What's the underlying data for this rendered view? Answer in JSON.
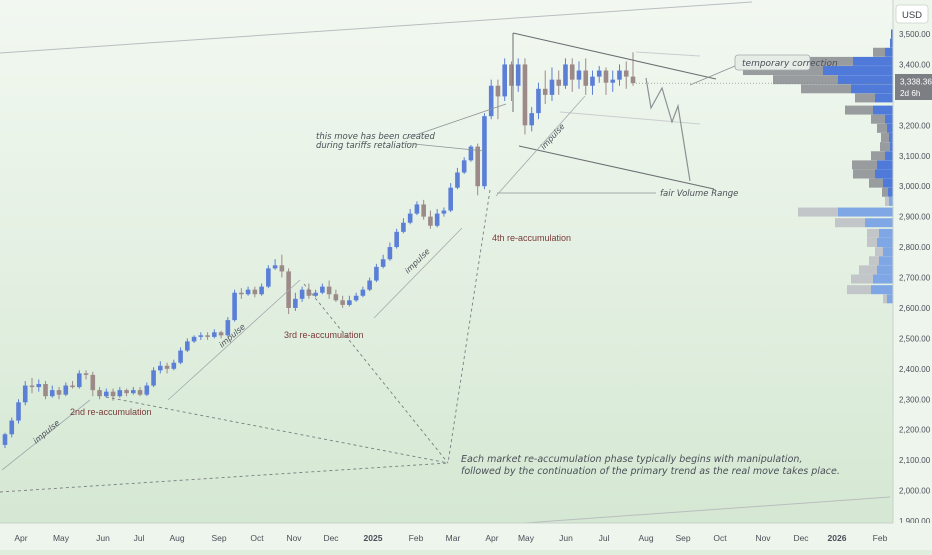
{
  "currency": "USD",
  "price_badge": {
    "price": "3,338.36",
    "countdown": "2d 6h"
  },
  "colors": {
    "background": "#dfeedd",
    "up": "#5b7fd6",
    "down": "#9c8a88",
    "badge": "#7b7f84",
    "vp_up": "#4f7ad9",
    "vp_down": "#999c9f",
    "vp_up_light": "#7fa7e6",
    "vp_down_light": "#c2c6c8",
    "annotation": "#4a4f58",
    "label": "#7a3a3a"
  },
  "annotations": {
    "tariffs": [
      "this move has been created",
      "during tariffs retaliation"
    ],
    "temporary_correction": "temporary correction",
    "fair_volume_range": "fair Volume Range",
    "impulse": "impulse",
    "reacc_2nd": "2nd re-accumulation",
    "reacc_3rd": "3rd re-accumulation",
    "reacc_4th": "4th re-accumulation",
    "note": [
      "Each market re-accumulation phase typically begins with manipulation,",
      "followed by the continuation of the primary trend as the real move takes place."
    ]
  },
  "chart_data": {
    "type": "candlestick",
    "ylim": [
      1900,
      3550
    ],
    "yticks": [
      1900,
      2000,
      2100,
      2200,
      2300,
      2400,
      2500,
      2600,
      2700,
      2800,
      2900,
      3000,
      3100,
      3200,
      3300,
      3400,
      3500
    ],
    "ytick_labels": [
      "1,900.00",
      "2,000.00",
      "2,100.00",
      "2,200.00",
      "2,300.00",
      "2,400.00",
      "2,500.00",
      "2,600.00",
      "2,700.00",
      "2,800.00",
      "2,900.00",
      "3,000.00",
      "3,100.00",
      "3,200.00",
      "3,300.00",
      "3,400.00",
      "3,500.00"
    ],
    "x_labels": [
      "Apr",
      "May",
      "Jun",
      "Jul",
      "Aug",
      "Sep",
      "Oct",
      "Nov",
      "Dec",
      "2025",
      "Feb",
      "Mar",
      "Apr",
      "May",
      "Jun",
      "Jul",
      "Aug",
      "Sep",
      "Oct",
      "Nov",
      "Dec",
      "2026",
      "Feb"
    ],
    "last_price": 3338.36,
    "candles": [
      [
        2150,
        2185,
        2140,
        2190
      ],
      [
        2185,
        2230,
        2175,
        2240
      ],
      [
        2230,
        2290,
        2220,
        2300
      ],
      [
        2290,
        2345,
        2280,
        2360
      ],
      [
        2345,
        2340,
        2320,
        2370
      ],
      [
        2340,
        2350,
        2325,
        2365
      ],
      [
        2350,
        2310,
        2300,
        2360
      ],
      [
        2310,
        2330,
        2305,
        2345
      ],
      [
        2330,
        2315,
        2300,
        2340
      ],
      [
        2315,
        2345,
        2310,
        2355
      ],
      [
        2345,
        2340,
        2335,
        2360
      ],
      [
        2340,
        2385,
        2335,
        2395
      ],
      [
        2385,
        2380,
        2365,
        2395
      ],
      [
        2380,
        2330,
        2310,
        2390
      ],
      [
        2330,
        2310,
        2300,
        2340
      ],
      [
        2310,
        2325,
        2305,
        2335
      ],
      [
        2325,
        2310,
        2295,
        2335
      ],
      [
        2310,
        2330,
        2305,
        2340
      ],
      [
        2330,
        2320,
        2310,
        2335
      ],
      [
        2320,
        2330,
        2315,
        2340
      ],
      [
        2330,
        2315,
        2310,
        2340
      ],
      [
        2315,
        2345,
        2310,
        2355
      ],
      [
        2345,
        2395,
        2340,
        2405
      ],
      [
        2395,
        2410,
        2385,
        2425
      ],
      [
        2410,
        2400,
        2385,
        2420
      ],
      [
        2400,
        2420,
        2395,
        2430
      ],
      [
        2420,
        2460,
        2415,
        2470
      ],
      [
        2460,
        2490,
        2455,
        2500
      ],
      [
        2490,
        2505,
        2485,
        2510
      ],
      [
        2505,
        2510,
        2495,
        2520
      ],
      [
        2510,
        2505,
        2495,
        2520
      ],
      [
        2505,
        2520,
        2500,
        2530
      ],
      [
        2520,
        2510,
        2500,
        2525
      ],
      [
        2510,
        2560,
        2505,
        2570
      ],
      [
        2560,
        2650,
        2555,
        2660
      ],
      [
        2650,
        2645,
        2630,
        2665
      ],
      [
        2645,
        2660,
        2640,
        2670
      ],
      [
        2660,
        2645,
        2635,
        2670
      ],
      [
        2645,
        2670,
        2640,
        2680
      ],
      [
        2670,
        2730,
        2665,
        2740
      ],
      [
        2730,
        2740,
        2725,
        2760
      ],
      [
        2740,
        2720,
        2700,
        2775
      ],
      [
        2720,
        2600,
        2580,
        2730
      ],
      [
        2600,
        2630,
        2590,
        2650
      ],
      [
        2630,
        2660,
        2620,
        2670
      ],
      [
        2660,
        2640,
        2630,
        2680
      ],
      [
        2640,
        2650,
        2635,
        2660
      ],
      [
        2650,
        2670,
        2645,
        2680
      ],
      [
        2670,
        2645,
        2630,
        2690
      ],
      [
        2645,
        2625,
        2620,
        2660
      ],
      [
        2625,
        2610,
        2600,
        2640
      ],
      [
        2610,
        2625,
        2605,
        2640
      ],
      [
        2625,
        2640,
        2620,
        2650
      ],
      [
        2640,
        2660,
        2635,
        2670
      ],
      [
        2660,
        2690,
        2655,
        2700
      ],
      [
        2690,
        2735,
        2685,
        2745
      ],
      [
        2735,
        2760,
        2730,
        2775
      ],
      [
        2760,
        2800,
        2755,
        2815
      ],
      [
        2800,
        2850,
        2795,
        2860
      ],
      [
        2850,
        2880,
        2845,
        2895
      ],
      [
        2880,
        2910,
        2875,
        2925
      ],
      [
        2910,
        2940,
        2905,
        2950
      ],
      [
        2940,
        2900,
        2890,
        2955
      ],
      [
        2900,
        2870,
        2860,
        2920
      ],
      [
        2870,
        2910,
        2865,
        2925
      ],
      [
        2910,
        2920,
        2900,
        2930
      ],
      [
        2920,
        2995,
        2915,
        3010
      ],
      [
        2995,
        3045,
        2990,
        3060
      ],
      [
        3045,
        3085,
        3040,
        3095
      ],
      [
        3085,
        3130,
        3080,
        3135
      ],
      [
        3130,
        3000,
        2970,
        3140
      ],
      [
        3000,
        3230,
        2990,
        3240
      ],
      [
        3230,
        3330,
        3220,
        3350
      ],
      [
        3330,
        3295,
        3220,
        3350
      ],
      [
        3295,
        3400,
        3280,
        3420
      ],
      [
        3400,
        3330,
        3280,
        3410
      ],
      [
        3330,
        3400,
        3310,
        3420
      ],
      [
        3400,
        3200,
        3170,
        3420
      ],
      [
        3200,
        3240,
        3180,
        3260
      ],
      [
        3240,
        3320,
        3220,
        3340
      ],
      [
        3320,
        3300,
        3270,
        3380
      ],
      [
        3300,
        3350,
        3280,
        3390
      ],
      [
        3350,
        3330,
        3300,
        3380
      ],
      [
        3330,
        3400,
        3320,
        3420
      ],
      [
        3400,
        3350,
        3310,
        3420
      ],
      [
        3350,
        3380,
        3320,
        3410
      ],
      [
        3380,
        3330,
        3300,
        3420
      ],
      [
        3330,
        3360,
        3300,
        3380
      ],
      [
        3360,
        3380,
        3340,
        3395
      ],
      [
        3380,
        3340,
        3300,
        3390
      ],
      [
        3340,
        3350,
        3310,
        3380
      ],
      [
        3350,
        3380,
        3330,
        3400
      ],
      [
        3380,
        3360,
        3320,
        3410
      ],
      [
        3360,
        3338.36,
        3330,
        3440
      ]
    ],
    "volume_profile": [
      {
        "price": 3500,
        "up": 2,
        "down": 0
      },
      {
        "price": 3470,
        "up": 3,
        "down": 0
      },
      {
        "price": 3440,
        "up": 8,
        "down": 12
      },
      {
        "price": 3410,
        "up": 40,
        "down": 95
      },
      {
        "price": 3380,
        "up": 70,
        "down": 80
      },
      {
        "price": 3350,
        "up": 55,
        "down": 65
      },
      {
        "price": 3320,
        "up": 42,
        "down": 50
      },
      {
        "price": 3290,
        "up": 18,
        "down": 20
      },
      {
        "price": 3250,
        "up": 20,
        "down": 28
      },
      {
        "price": 3220,
        "up": 8,
        "down": 14
      },
      {
        "price": 3190,
        "up": 6,
        "down": 10
      },
      {
        "price": 3160,
        "up": 4,
        "down": 8
      },
      {
        "price": 3130,
        "up": 3,
        "down": 10
      },
      {
        "price": 3100,
        "up": 8,
        "down": 14
      },
      {
        "price": 3070,
        "up": 16,
        "down": 25
      },
      {
        "price": 3040,
        "up": 18,
        "down": 22
      },
      {
        "price": 3010,
        "up": 10,
        "down": 14
      },
      {
        "price": 2980,
        "up": 5,
        "down": 6
      },
      {
        "price": 2950,
        "up": 4,
        "down": 4
      },
      {
        "price": 2915,
        "up": 55,
        "down": 40
      },
      {
        "price": 2880,
        "up": 28,
        "down": 30
      },
      {
        "price": 2845,
        "up": 14,
        "down": 12
      },
      {
        "price": 2815,
        "up": 16,
        "down": 10
      },
      {
        "price": 2785,
        "up": 10,
        "down": 8
      },
      {
        "price": 2755,
        "up": 14,
        "down": 10
      },
      {
        "price": 2725,
        "up": 16,
        "down": 18
      },
      {
        "price": 2695,
        "up": 20,
        "down": 22
      },
      {
        "price": 2660,
        "up": 22,
        "down": 24
      },
      {
        "price": 2630,
        "up": 6,
        "down": 4
      }
    ]
  }
}
